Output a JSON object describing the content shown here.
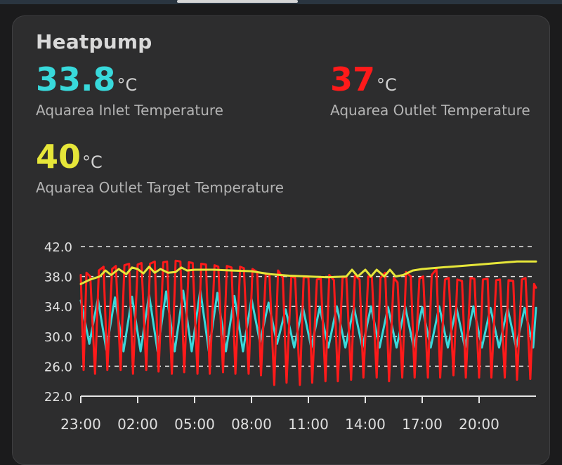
{
  "card": {
    "title": "Heatpump"
  },
  "entities": [
    {
      "id": "inlet",
      "value": "33.8",
      "unit": "°C",
      "name": "Aquarea Inlet Temperature",
      "color": "#38d9db"
    },
    {
      "id": "outlet",
      "value": "37",
      "unit": "°C",
      "name": "Aquarea Outlet Temperature",
      "color": "#ff1a1a"
    },
    {
      "id": "target",
      "value": "40",
      "unit": "°C",
      "name": "Aquarea Outlet Target Temperature",
      "color": "#e6e639"
    }
  ],
  "chart_data": {
    "type": "line",
    "ylim": [
      22,
      42
    ],
    "y_ticks": [
      "42.0",
      "38.0",
      "34.0",
      "30.0",
      "26.0",
      "22.0"
    ],
    "y_tick_values": [
      42,
      38,
      34,
      30,
      26,
      22
    ],
    "x_tick_labels": [
      "23:00",
      "02:00",
      "05:00",
      "08:00",
      "11:00",
      "14:00",
      "17:00",
      "20:00"
    ],
    "x_tick_hours": [
      0,
      3,
      6,
      9,
      12,
      15,
      18,
      21
    ],
    "x_range_hours": [
      0,
      24
    ],
    "grid": true,
    "series": [
      {
        "key": "target",
        "color": "#e6e639",
        "x": [
          0,
          0.5,
          1.0,
          1.3,
          1.6,
          2.0,
          2.4,
          2.7,
          3.0,
          3.3,
          3.6,
          3.9,
          4.2,
          4.6,
          5.0,
          5.3,
          5.6,
          6.0,
          7.0,
          8.0,
          9.0,
          10.0,
          11.0,
          12.0,
          13.0,
          14.0,
          14.3,
          14.6,
          15.0,
          15.3,
          15.6,
          16.0,
          16.3,
          16.6,
          17.0,
          17.5,
          18.0,
          19.0,
          20.0,
          21.0,
          22.0,
          23.0,
          24.0
        ],
        "values": [
          37.0,
          37.6,
          38.0,
          38.8,
          38.2,
          39.0,
          38.3,
          39.2,
          39.0,
          38.4,
          39.3,
          38.5,
          39.0,
          38.5,
          38.6,
          39.2,
          38.8,
          38.9,
          38.9,
          38.8,
          38.7,
          38.3,
          38.1,
          38.0,
          37.9,
          38.0,
          38.9,
          38.0,
          38.9,
          38.0,
          38.9,
          38.0,
          38.9,
          38.0,
          38.2,
          38.8,
          39.0,
          39.2,
          39.4,
          39.6,
          39.8,
          40.0,
          40.0
        ]
      },
      {
        "key": "inlet",
        "color": "#38d9db",
        "x": [
          0.0,
          0.45,
          0.9,
          1.35,
          1.8,
          2.25,
          2.7,
          3.15,
          3.6,
          4.05,
          4.5,
          4.95,
          5.4,
          5.85,
          6.3,
          6.75,
          7.2,
          7.65,
          8.1,
          8.55,
          9.0,
          9.45,
          9.9,
          10.35,
          10.8,
          11.25,
          11.7,
          12.15,
          12.6,
          13.05,
          13.5,
          13.95,
          14.4,
          14.85,
          15.3,
          15.75,
          16.2,
          16.65,
          17.1,
          17.55,
          18.0,
          18.45,
          18.9,
          19.35,
          19.8,
          20.25,
          20.7,
          21.15,
          21.6,
          22.05,
          22.5,
          22.95,
          23.4,
          23.85,
          24.0
        ],
        "values": [
          34.8,
          29.0,
          35.0,
          28.2,
          35.2,
          28.0,
          35.3,
          28.0,
          35.6,
          28.0,
          36.0,
          28.0,
          36.1,
          28.0,
          36.2,
          28.0,
          35.8,
          28.0,
          35.4,
          28.0,
          35.0,
          29.2,
          34.5,
          29.0,
          33.6,
          28.5,
          34.0,
          28.5,
          33.9,
          28.5,
          34.0,
          28.5,
          33.9,
          28.5,
          34.0,
          28.5,
          33.9,
          28.5,
          34.0,
          28.5,
          33.9,
          28.5,
          34.0,
          28.5,
          33.9,
          28.5,
          34.0,
          28.5,
          33.8,
          28.5,
          33.8,
          28.5,
          33.8,
          28.5,
          33.8
        ]
      },
      {
        "key": "outlet",
        "color": "#ff1a1a",
        "x": [
          0.0,
          0.15,
          0.3,
          0.5,
          0.75,
          0.95,
          1.2,
          1.4,
          1.65,
          1.85,
          2.1,
          2.3,
          2.55,
          2.75,
          3.0,
          3.2,
          3.45,
          3.65,
          3.9,
          4.1,
          4.35,
          4.55,
          4.8,
          5.0,
          5.25,
          5.45,
          5.7,
          5.9,
          6.15,
          6.35,
          6.6,
          6.8,
          7.05,
          7.25,
          7.5,
          7.7,
          7.95,
          8.15,
          8.4,
          8.6,
          8.85,
          9.05,
          9.3,
          9.5,
          9.75,
          9.95,
          10.2,
          10.4,
          10.65,
          10.85,
          11.1,
          11.3,
          11.55,
          11.75,
          12.0,
          12.2,
          12.45,
          12.65,
          12.9,
          13.1,
          13.35,
          13.55,
          13.8,
          14.0,
          14.25,
          14.45,
          14.7,
          14.9,
          15.15,
          15.35,
          15.6,
          15.8,
          16.05,
          16.25,
          16.5,
          16.7,
          16.95,
          17.15,
          17.4,
          17.6,
          17.85,
          18.05,
          18.3,
          18.5,
          18.75,
          18.95,
          19.2,
          19.4,
          19.65,
          19.85,
          20.1,
          20.3,
          20.55,
          20.75,
          21.0,
          21.2,
          21.45,
          21.65,
          21.9,
          22.1,
          22.35,
          22.55,
          22.8,
          23.0,
          23.25,
          23.45,
          23.7,
          23.9,
          24.0
        ],
        "values": [
          38.2,
          25.5,
          38.5,
          38.0,
          25.0,
          38.8,
          39.3,
          25.5,
          39.0,
          39.4,
          25.5,
          39.5,
          39.7,
          25.0,
          39.6,
          39.8,
          25.5,
          39.7,
          40.0,
          25.3,
          39.9,
          40.0,
          25.0,
          40.1,
          40.0,
          25.2,
          39.9,
          39.8,
          25.0,
          39.7,
          39.6,
          25.0,
          39.5,
          39.3,
          25.2,
          39.4,
          39.2,
          25.0,
          39.3,
          39.1,
          25.0,
          39.0,
          38.6,
          24.8,
          38.4,
          38.2,
          23.5,
          38.8,
          37.8,
          23.8,
          38.0,
          37.8,
          23.5,
          37.9,
          37.9,
          23.8,
          37.6,
          37.7,
          24.0,
          38.2,
          37.5,
          24.0,
          37.8,
          38.0,
          24.2,
          38.1,
          37.6,
          24.5,
          38.0,
          37.9,
          24.5,
          37.8,
          38.5,
          24.0,
          37.8,
          37.2,
          24.5,
          38.6,
          38.0,
          24.5,
          37.7,
          38.0,
          24.5,
          38.2,
          39.0,
          24.5,
          37.6,
          37.8,
          24.8,
          37.6,
          37.4,
          24.5,
          37.8,
          37.7,
          24.5,
          37.6,
          37.7,
          24.5,
          37.5,
          37.6,
          24.5,
          37.5,
          37.4,
          24.2,
          37.6,
          37.8,
          24.3,
          37.0,
          36.5
        ]
      }
    ]
  }
}
